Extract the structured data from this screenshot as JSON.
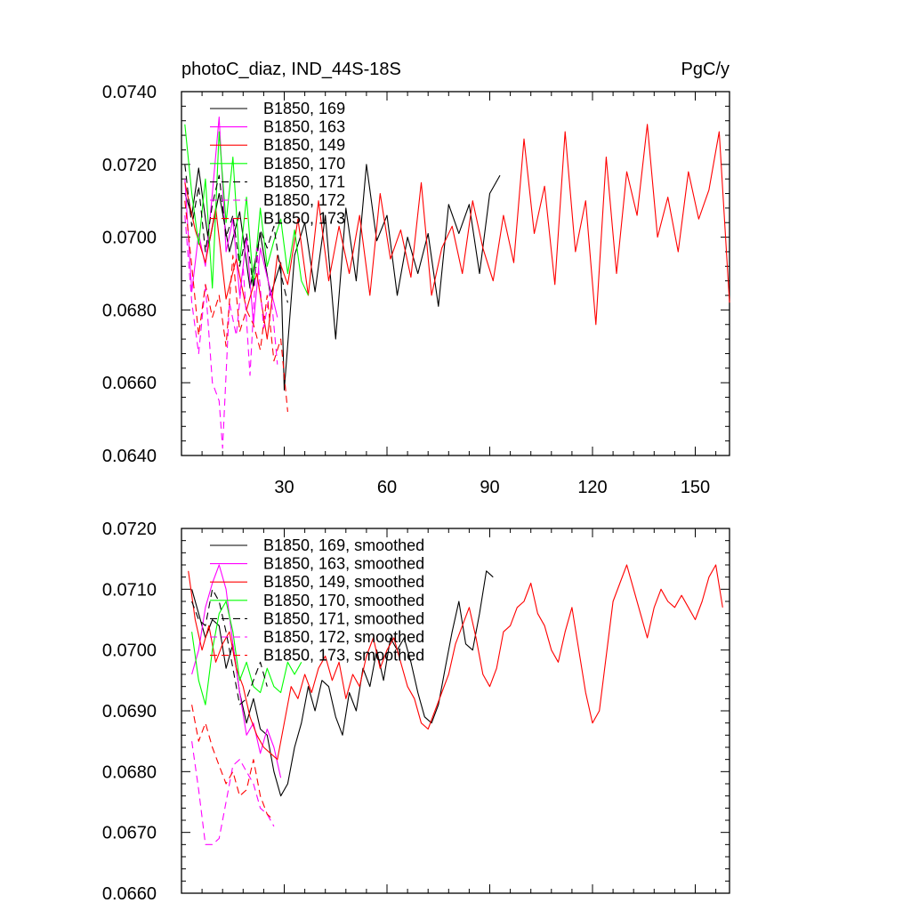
{
  "chart_data": [
    {
      "type": "line",
      "title": "photoC_diaz, IND_44S-18S",
      "units": "PgC/y",
      "xlabel": "",
      "ylabel": "",
      "xlim": [
        0,
        160
      ],
      "ylim": [
        0.064,
        0.074
      ],
      "xticks": [
        "30",
        "60",
        "90",
        "120",
        "150"
      ],
      "yticks": [
        "0.0640",
        "0.0660",
        "0.0680",
        "0.0700",
        "0.0720",
        "0.0740"
      ],
      "legend_position": "top-left",
      "series": [
        {
          "name": "B1850, 169",
          "color": "#000000",
          "dash": "solid",
          "x": [
            1,
            3,
            5,
            8,
            11,
            14,
            17,
            20,
            23,
            26,
            29,
            30,
            33,
            36,
            39,
            42,
            45,
            48,
            51,
            54,
            57,
            60,
            63,
            66,
            69,
            72,
            75,
            78,
            81,
            84,
            87,
            90,
            93
          ],
          "y": [
            0.0712,
            0.0706,
            0.0719,
            0.0698,
            0.0712,
            0.0696,
            0.0707,
            0.0686,
            0.0701,
            0.0684,
            0.0693,
            0.0658,
            0.0695,
            0.0704,
            0.0685,
            0.0706,
            0.0672,
            0.0708,
            0.0688,
            0.072,
            0.0699,
            0.0706,
            0.0684,
            0.07,
            0.069,
            0.0701,
            0.0681,
            0.0709,
            0.0701,
            0.0709,
            0.069,
            0.0712,
            0.0717
          ]
        },
        {
          "name": "B1850, 163",
          "color": "#ff00ff",
          "dash": "solid",
          "x": [
            1,
            3,
            5,
            7,
            9,
            11,
            13,
            15,
            17,
            19,
            21,
            23,
            25,
            27,
            28
          ],
          "y": [
            0.0716,
            0.0685,
            0.0701,
            0.0692,
            0.0712,
            0.0733,
            0.0696,
            0.0705,
            0.0684,
            0.07,
            0.0676,
            0.0697,
            0.0689,
            0.0682,
            0.0678
          ]
        },
        {
          "name": "B1850, 149",
          "color": "#ff0000",
          "dash": "solid",
          "x": [
            1,
            4,
            7,
            10,
            13,
            16,
            19,
            22,
            25,
            28,
            31,
            34,
            37,
            40,
            43,
            46,
            49,
            52,
            55,
            58,
            61,
            64,
            67,
            70,
            73,
            76,
            79,
            82,
            85,
            88,
            91,
            94,
            97,
            100,
            103,
            106,
            109,
            112,
            115,
            118,
            121,
            124,
            127,
            130,
            133,
            136,
            139,
            142,
            145,
            148,
            151,
            154,
            157,
            160
          ],
          "y": [
            0.0715,
            0.0702,
            0.0693,
            0.0708,
            0.0683,
            0.0694,
            0.068,
            0.069,
            0.0672,
            0.0695,
            0.0687,
            0.0705,
            0.0684,
            0.071,
            0.0688,
            0.0703,
            0.069,
            0.0706,
            0.0684,
            0.0712,
            0.0694,
            0.0702,
            0.0689,
            0.0715,
            0.0684,
            0.0697,
            0.0703,
            0.069,
            0.071,
            0.0697,
            0.0688,
            0.0706,
            0.0693,
            0.0727,
            0.0701,
            0.0714,
            0.0687,
            0.0729,
            0.0696,
            0.071,
            0.0676,
            0.0722,
            0.069,
            0.0718,
            0.0706,
            0.0731,
            0.07,
            0.0711,
            0.0696,
            0.0718,
            0.0705,
            0.0713,
            0.0729,
            0.0682
          ]
        },
        {
          "name": "B1850, 170",
          "color": "#00ff00",
          "dash": "solid",
          "x": [
            1,
            3,
            5,
            7,
            9,
            11,
            13,
            15,
            17,
            19,
            21,
            23,
            25,
            27,
            29,
            31,
            33,
            35,
            37
          ],
          "y": [
            0.0731,
            0.0712,
            0.0698,
            0.0716,
            0.0686,
            0.0729,
            0.0704,
            0.0722,
            0.0693,
            0.0711,
            0.0687,
            0.0708,
            0.0692,
            0.0699,
            0.0705,
            0.069,
            0.0702,
            0.0688,
            0.0684
          ]
        },
        {
          "name": "B1850, 171",
          "color": "#000000",
          "dash": "dashed",
          "x": [
            1,
            3,
            5,
            7,
            9,
            11,
            13,
            15,
            17,
            19,
            21,
            23,
            25,
            27,
            29,
            31
          ],
          "y": [
            0.072,
            0.0703,
            0.0714,
            0.0696,
            0.0709,
            0.0717,
            0.07,
            0.0706,
            0.0692,
            0.0701,
            0.0686,
            0.0702,
            0.0697,
            0.0703,
            0.069,
            0.0682
          ]
        },
        {
          "name": "B1850, 172",
          "color": "#ff00ff",
          "dash": "dashed",
          "x": [
            1,
            3,
            5,
            7,
            9,
            11,
            12,
            14,
            16,
            18,
            20,
            22,
            24,
            26,
            28
          ],
          "y": [
            0.0706,
            0.0682,
            0.0668,
            0.0687,
            0.066,
            0.0655,
            0.0642,
            0.0682,
            0.0673,
            0.0692,
            0.0662,
            0.0697,
            0.0675,
            0.0686,
            0.0665
          ]
        },
        {
          "name": "B1850, 173",
          "color": "#ff0000",
          "dash": "dashed",
          "x": [
            1,
            3,
            5,
            7,
            9,
            11,
            13,
            15,
            17,
            19,
            21,
            23,
            25,
            27,
            29,
            31
          ],
          "y": [
            0.071,
            0.0692,
            0.0673,
            0.0687,
            0.0678,
            0.0684,
            0.067,
            0.0695,
            0.0674,
            0.068,
            0.0676,
            0.0669,
            0.0684,
            0.0666,
            0.0672,
            0.0652
          ]
        }
      ]
    },
    {
      "type": "line",
      "title": "",
      "xlabel": "",
      "ylabel": "",
      "xlim": [
        0,
        160
      ],
      "ylim": [
        0.066,
        0.072
      ],
      "xticks": [],
      "yticks": [
        "0.0660",
        "0.0670",
        "0.0680",
        "0.0690",
        "0.0700",
        "0.0710",
        "0.0720"
      ],
      "legend_position": "top-left",
      "series": [
        {
          "name": "B1850, 169, smoothed",
          "color": "#000000",
          "dash": "solid",
          "x": [
            3,
            5,
            7,
            9,
            11,
            13,
            15,
            17,
            19,
            21,
            23,
            25,
            27,
            29,
            31,
            33,
            35,
            37,
            39,
            41,
            43,
            45,
            47,
            49,
            51,
            53,
            55,
            57,
            59,
            61,
            63,
            65,
            67,
            69,
            71,
            73,
            75,
            77,
            79,
            81,
            83,
            85,
            87,
            89,
            91
          ],
          "y": [
            0.071,
            0.0706,
            0.0702,
            0.0705,
            0.0704,
            0.0697,
            0.0701,
            0.0693,
            0.0688,
            0.0692,
            0.0687,
            0.0686,
            0.068,
            0.0676,
            0.0678,
            0.0684,
            0.0688,
            0.0694,
            0.069,
            0.0695,
            0.0694,
            0.0689,
            0.0686,
            0.0693,
            0.069,
            0.0697,
            0.0694,
            0.07,
            0.0695,
            0.0702,
            0.07,
            0.0702,
            0.0698,
            0.0693,
            0.0689,
            0.0688,
            0.0691,
            0.0697,
            0.0703,
            0.0708,
            0.0701,
            0.07,
            0.0706,
            0.0713,
            0.0712
          ]
        },
        {
          "name": "B1850, 163, smoothed",
          "color": "#ff00ff",
          "dash": "solid",
          "x": [
            3,
            5,
            7,
            9,
            11,
            13,
            15,
            17,
            19,
            21,
            23,
            25,
            27,
            29
          ],
          "y": [
            0.0696,
            0.07,
            0.0707,
            0.0711,
            0.0714,
            0.071,
            0.0701,
            0.0693,
            0.0686,
            0.0688,
            0.0683,
            0.0687,
            0.0684,
            0.0679
          ]
        },
        {
          "name": "B1850, 149, smoothed",
          "color": "#ff0000",
          "dash": "solid",
          "x": [
            2,
            4,
            6,
            8,
            10,
            12,
            14,
            16,
            18,
            20,
            22,
            24,
            26,
            28,
            30,
            32,
            34,
            36,
            38,
            40,
            42,
            44,
            46,
            48,
            50,
            52,
            54,
            56,
            58,
            60,
            62,
            64,
            66,
            68,
            70,
            72,
            74,
            76,
            78,
            80,
            82,
            84,
            86,
            88,
            90,
            92,
            94,
            96,
            98,
            100,
            102,
            104,
            106,
            108,
            110,
            112,
            114,
            116,
            118,
            120,
            122,
            124,
            126,
            128,
            130,
            132,
            134,
            136,
            138,
            140,
            142,
            144,
            146,
            148,
            150,
            152,
            154,
            156,
            158
          ],
          "y": [
            0.0713,
            0.0705,
            0.07,
            0.0704,
            0.0698,
            0.0701,
            0.0703,
            0.0697,
            0.0694,
            0.0689,
            0.0686,
            0.0684,
            0.0683,
            0.0682,
            0.0688,
            0.0694,
            0.0692,
            0.0696,
            0.0693,
            0.0697,
            0.0699,
            0.0695,
            0.0698,
            0.0692,
            0.0696,
            0.0694,
            0.0699,
            0.0702,
            0.0697,
            0.07,
            0.0702,
            0.0698,
            0.0694,
            0.0692,
            0.0688,
            0.0687,
            0.069,
            0.0693,
            0.0696,
            0.0701,
            0.0704,
            0.0707,
            0.0702,
            0.0696,
            0.0694,
            0.0697,
            0.0703,
            0.0704,
            0.0707,
            0.0708,
            0.0711,
            0.0706,
            0.0704,
            0.07,
            0.0698,
            0.0703,
            0.0707,
            0.07,
            0.0693,
            0.0688,
            0.069,
            0.0699,
            0.0708,
            0.0711,
            0.0714,
            0.071,
            0.0706,
            0.0702,
            0.0707,
            0.071,
            0.0708,
            0.0707,
            0.0709,
            0.0707,
            0.0705,
            0.0708,
            0.0712,
            0.0714,
            0.0707
          ]
        },
        {
          "name": "B1850, 170, smoothed",
          "color": "#00ff00",
          "dash": "solid",
          "x": [
            3,
            5,
            7,
            9,
            11,
            13,
            15,
            17,
            19,
            21,
            23,
            25,
            27,
            29,
            31,
            33,
            35
          ],
          "y": [
            0.0703,
            0.0695,
            0.0691,
            0.07,
            0.0706,
            0.0708,
            0.0703,
            0.0695,
            0.0698,
            0.0694,
            0.0693,
            0.0697,
            0.0694,
            0.0693,
            0.0698,
            0.0696,
            0.0698
          ]
        },
        {
          "name": "B1850, 171, smoothed",
          "color": "#000000",
          "dash": "dashed",
          "x": [
            3,
            5,
            7,
            9,
            11,
            13,
            15,
            17,
            19,
            21,
            23,
            25
          ],
          "y": [
            0.0708,
            0.0705,
            0.0704,
            0.071,
            0.0708,
            0.0703,
            0.0697,
            0.0691,
            0.0692,
            0.0695,
            0.0698,
            0.0694
          ]
        },
        {
          "name": "B1850, 172, smoothed",
          "color": "#ff00ff",
          "dash": "dashed",
          "x": [
            3,
            5,
            7,
            9,
            11,
            13,
            15,
            17,
            19,
            21,
            23,
            25,
            27
          ],
          "y": [
            0.0685,
            0.0677,
            0.0668,
            0.0668,
            0.0669,
            0.0675,
            0.0681,
            0.0682,
            0.068,
            0.0678,
            0.0674,
            0.0673,
            0.0671
          ]
        },
        {
          "name": "B1850, 173, smoothed",
          "color": "#ff0000",
          "dash": "dashed",
          "x": [
            3,
            5,
            7,
            9,
            11,
            13,
            15,
            17,
            19,
            21,
            23,
            25,
            27
          ],
          "y": [
            0.0691,
            0.0685,
            0.0688,
            0.0684,
            0.0681,
            0.0678,
            0.068,
            0.0676,
            0.0677,
            0.0682,
            0.0676,
            0.0673,
            0.0672
          ]
        }
      ]
    }
  ]
}
